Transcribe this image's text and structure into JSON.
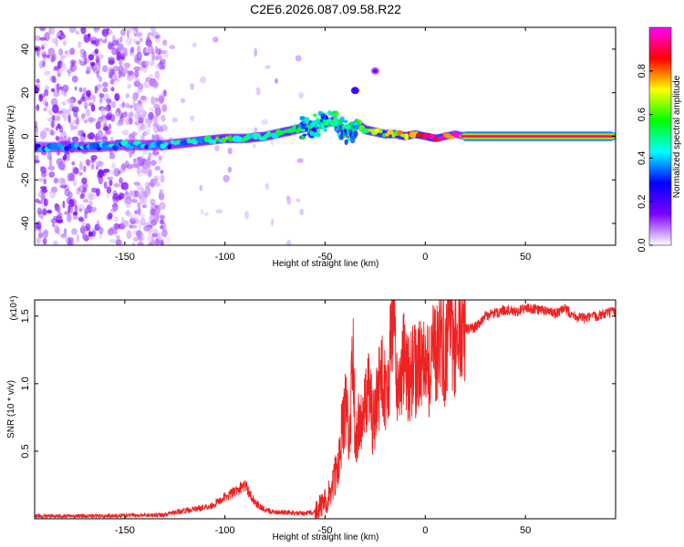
{
  "page": {
    "title": "C2E6.2026.087.09.58.R22"
  },
  "chart_data": [
    {
      "type": "heatmap",
      "title": "C2E6.2026.087.09.58.R22",
      "xlabel": "Height of straight line (km)",
      "ylabel": "Frequency (Hz)",
      "xlim": [
        -195,
        95
      ],
      "ylim": [
        -50,
        50
      ],
      "xticks": [
        -150,
        -100,
        -50,
        0,
        50
      ],
      "yticks": [
        -40,
        -20,
        0,
        20,
        40
      ],
      "colorbar": {
        "label": "Normalized spectral amplitude",
        "range": [
          0,
          1
        ],
        "ticks": [
          "0.0",
          "0.2",
          "0.4",
          "0.6",
          "0.8"
        ],
        "tick_values": [
          0,
          0.2,
          0.4,
          0.6,
          0.8
        ],
        "colormap": [
          "#ffffff",
          "#7e00ff",
          "#0000ff",
          "#00ffff",
          "#00ff00",
          "#ffff00",
          "#ff0000",
          "#ff00ff"
        ]
      },
      "ridge": {
        "height_km": [
          -195,
          -180,
          -165,
          -150,
          -140,
          -130,
          -120,
          -110,
          -100,
          -90,
          -80,
          -75,
          -70,
          -65,
          -60,
          -55,
          -50,
          -45,
          -42,
          -40,
          -38,
          -36,
          -35,
          -34,
          -30,
          -25,
          -20,
          -15,
          -10,
          -5,
          0,
          5,
          10,
          15,
          20,
          95
        ],
        "frequency_hz": [
          -5,
          -5,
          -5,
          -4,
          -4,
          -4,
          -3,
          -2,
          -1,
          -1,
          0,
          1,
          2,
          3,
          4,
          5,
          6,
          7,
          4,
          2,
          1,
          3,
          5,
          6,
          3,
          2,
          1,
          1,
          0,
          1,
          0,
          -1,
          0,
          1,
          0,
          0
        ],
        "amplitude": [
          0.3,
          0.35,
          0.35,
          0.35,
          0.35,
          0.35,
          0.4,
          0.45,
          0.5,
          0.5,
          0.5,
          0.5,
          0.5,
          0.5,
          0.55,
          0.55,
          0.55,
          0.5,
          0.4,
          0.4,
          0.45,
          0.5,
          0.5,
          0.5,
          0.55,
          0.6,
          0.65,
          0.7,
          0.75,
          0.8,
          0.85,
          0.85,
          0.88,
          0.9,
          0.92,
          0.92
        ]
      },
      "side_features": [
        {
          "height_km": -35,
          "frequency_hz": 21,
          "amplitude": 0.3
        },
        {
          "height_km": -25,
          "frequency_hz": 30,
          "amplitude": 0.15
        }
      ]
    },
    {
      "type": "line",
      "title": "",
      "xlabel": "Height of straight line (km)",
      "ylabel": "SNR (10 * v/v)",
      "y_multiplier": "(x10⁴)",
      "xlim": [
        -195,
        95
      ],
      "ylim": [
        0,
        1.62
      ],
      "xticks": [
        -150,
        -100,
        -50,
        0,
        50
      ],
      "yticks": [
        0.5,
        1.0,
        1.5
      ],
      "ytick_labels": [
        "0.5",
        "1.0",
        "1.5"
      ],
      "series": [
        {
          "color": "#ee2222",
          "x": [
            -195,
            -160,
            -130,
            -120,
            -112,
            -106,
            -100,
            -95,
            -90,
            -85,
            -80,
            -75,
            -70,
            -65,
            -60,
            -55,
            -50,
            -47,
            -44,
            -42,
            -40,
            -38,
            -36,
            -35,
            -34,
            -32,
            -30,
            -28,
            -26,
            -24,
            -22,
            -20,
            -18,
            -16,
            -14,
            -12,
            -10,
            -8,
            -6,
            -4,
            -2,
            0,
            2,
            4,
            6,
            8,
            10,
            12,
            14,
            16,
            18,
            20,
            25,
            30,
            35,
            40,
            45,
            50,
            55,
            60,
            65,
            70,
            75,
            80,
            85,
            90,
            95
          ],
          "y": [
            0.02,
            0.02,
            0.03,
            0.06,
            0.08,
            0.1,
            0.16,
            0.2,
            0.25,
            0.12,
            0.06,
            0.05,
            0.05,
            0.04,
            0.04,
            0.05,
            0.12,
            0.22,
            0.35,
            0.55,
            0.85,
            0.6,
            1.2,
            0.5,
            0.65,
            0.75,
            0.8,
            0.95,
            0.7,
            0.9,
            1.05,
            0.95,
            1.1,
            1.62,
            0.9,
            1.1,
            1.2,
            1.0,
            1.15,
            1.05,
            1.2,
            1.25,
            1.1,
            1.3,
            1.2,
            1.35,
            1.15,
            1.6,
            1.25,
            1.3,
            1.35,
            1.4,
            1.42,
            1.5,
            1.52,
            1.55,
            1.53,
            1.56,
            1.55,
            1.54,
            1.52,
            1.55,
            1.5,
            1.48,
            1.5,
            1.52,
            1.53
          ]
        }
      ]
    }
  ]
}
